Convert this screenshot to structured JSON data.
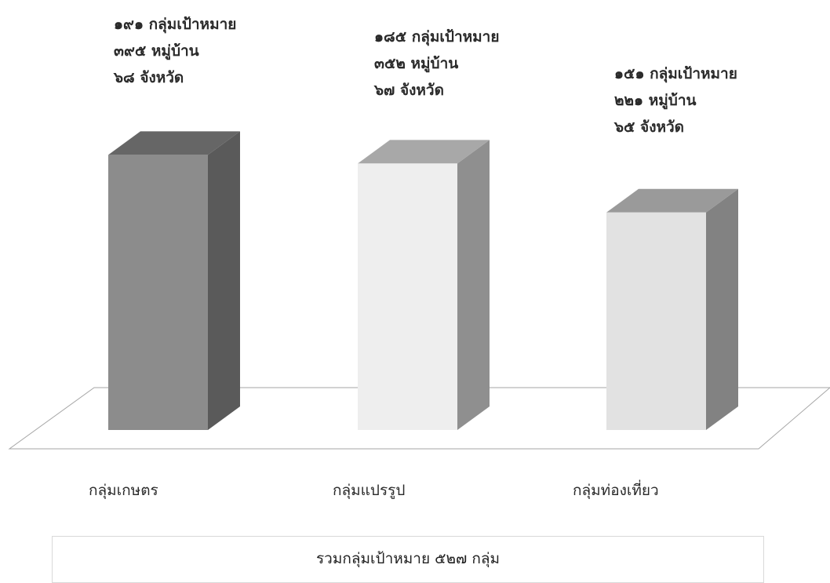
{
  "chart_data": {
    "type": "bar",
    "style": "3d-column",
    "categories": [
      "กลุ่มเกษตร",
      "กลุ่มแปรรูป",
      "กลุ่มท่องเที่ยว"
    ],
    "values": [
      191,
      185,
      151
    ],
    "annotations": [
      [
        "๑๙๑ กลุ่มเป้าหมาย",
        "๓๙๕ หมู่บ้าน",
        "๖๘ จังหวัด"
      ],
      [
        "๑๘๕ กลุ่มเป้าหมาย",
        "๓๕๒ หมู่บ้าน",
        "๖๗ จังหวัด"
      ],
      [
        "๑๕๑ กลุ่มเป้าหมาย",
        "๒๒๑ หมู่บ้าน",
        "๖๕ จังหวัด"
      ]
    ],
    "bar_colors": [
      "#8c8c8c",
      "#eeeeee",
      "#e2e2e2"
    ],
    "grid": false,
    "legend": "none"
  },
  "summary_box": {
    "text": "รวมกลุ่มเป้าหมาย ๕๒๗ กลุ่ม"
  }
}
